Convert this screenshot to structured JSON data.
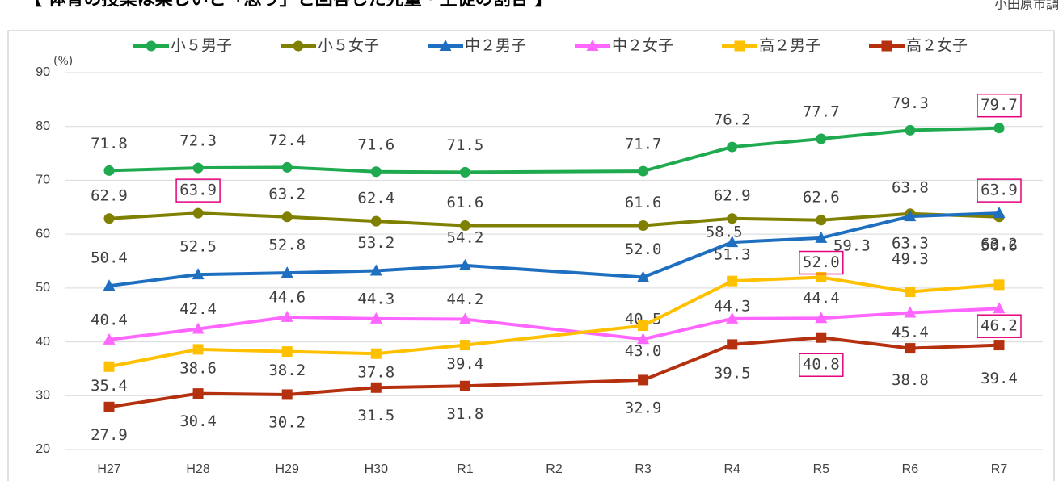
{
  "chart_data": {
    "type": "line",
    "title": "【 体育の授業は楽しいと「思う」と回答した児童・生徒の割合 】",
    "note": "小田原市調",
    "y_unit": "(%)",
    "categories": [
      "H27",
      "H28",
      "H29",
      "H30",
      "R1",
      "R2",
      "R3",
      "R4",
      "R5",
      "R6",
      "R7"
    ],
    "ylim": [
      20,
      90
    ],
    "yticks": [
      20,
      30,
      40,
      50,
      60,
      70,
      80,
      90
    ],
    "grid": true,
    "legend": "top",
    "series": [
      {
        "name": "小５男子",
        "color": "#1faa50",
        "marker": "circle",
        "values": [
          71.8,
          72.3,
          72.4,
          71.6,
          71.5,
          null,
          71.7,
          76.2,
          77.7,
          79.3,
          79.7
        ],
        "value_labels": [
          "71.8",
          "72.3",
          "72.4",
          "71.6",
          "71.5",
          null,
          "71.7",
          "76.2",
          "77.7",
          "79.3",
          "79.7"
        ]
      },
      {
        "name": "小５女子",
        "color": "#808000",
        "marker": "circle",
        "values": [
          62.9,
          63.9,
          63.2,
          62.4,
          61.6,
          null,
          61.6,
          62.9,
          62.6,
          63.8,
          63.2
        ],
        "value_labels": [
          "62.9",
          "63.9",
          "63.2",
          "62.4",
          "61.6",
          null,
          "61.6",
          "62.9",
          "62.6",
          "63.8",
          "63.2"
        ]
      },
      {
        "name": "中２男子",
        "color": "#1f6fc0",
        "marker": "triangle",
        "values": [
          50.4,
          52.5,
          52.8,
          53.2,
          54.2,
          null,
          52.0,
          58.5,
          59.3,
          63.3,
          63.9
        ],
        "value_labels": [
          "50.4",
          "52.5",
          "52.8",
          "53.2",
          "54.2",
          null,
          "52.0",
          "58.5",
          "59.3",
          "63.3",
          "63.9"
        ]
      },
      {
        "name": "中２女子",
        "color": "#ff66ff",
        "marker": "triangle",
        "values": [
          40.4,
          42.4,
          44.6,
          44.3,
          44.2,
          null,
          40.5,
          44.3,
          44.4,
          45.4,
          46.2
        ],
        "value_labels": [
          "40.4",
          "42.4",
          "44.6",
          "44.3",
          "44.2",
          null,
          "40.5",
          "44.3",
          "44.4",
          "45.4",
          "46.2"
        ]
      },
      {
        "name": "高２男子",
        "color": "#ffc000",
        "marker": "square",
        "values": [
          35.4,
          38.6,
          38.2,
          37.8,
          39.4,
          null,
          43.0,
          51.3,
          52.0,
          49.3,
          50.6
        ],
        "value_labels": [
          "35.4",
          "38.6",
          "38.2",
          "37.8",
          "39.4",
          null,
          "43.0",
          "51.3",
          "52.0",
          "49.3",
          "50.6"
        ]
      },
      {
        "name": "高２女子",
        "color": "#b5300e",
        "marker": "square",
        "values": [
          27.9,
          30.4,
          30.2,
          31.5,
          31.8,
          null,
          32.9,
          39.5,
          40.8,
          38.8,
          39.4
        ],
        "value_labels": [
          "27.9",
          "30.4",
          "30.2",
          "31.5",
          "31.8",
          null,
          "32.9",
          "39.5",
          "40.8",
          "38.8",
          "39.4"
        ]
      }
    ]
  }
}
